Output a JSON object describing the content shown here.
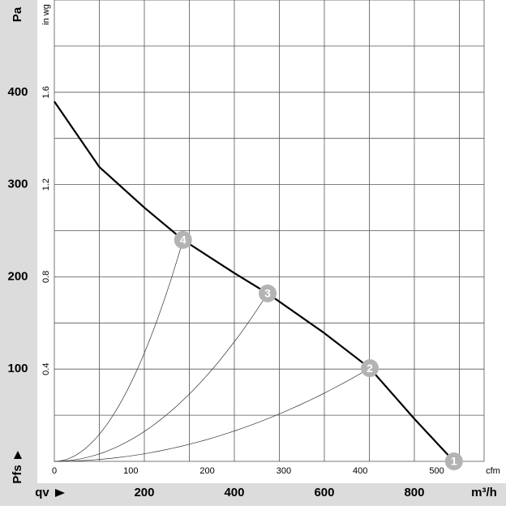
{
  "chart_data": {
    "type": "line",
    "y_unit": "Pa",
    "y2_unit": "in wg",
    "x_unit": "m³/h",
    "x2_unit": "cfm",
    "x_symbol": "qv",
    "y_symbol": "Pfs",
    "xlim": [
      0,
      955
    ],
    "xticks": [
      200,
      400,
      600,
      800
    ],
    "x2lim": [
      0,
      562
    ],
    "x2ticks": [
      0,
      100,
      200,
      300,
      400,
      500
    ],
    "ylim": [
      0,
      500
    ],
    "yticks": [
      100,
      200,
      300,
      400
    ],
    "y2lim": [
      0,
      2.0
    ],
    "y2ticks": [
      0.4,
      0.8,
      1.2,
      1.6
    ],
    "xgrid": [
      100,
      200,
      300,
      400,
      500,
      600,
      700,
      800,
      900
    ],
    "ygrid": [
      50,
      100,
      150,
      200,
      250,
      300,
      350,
      400,
      450
    ],
    "grid": true,
    "series": [
      {
        "color": "#000000",
        "x": [
          0,
          100,
          200,
          286,
          400,
          474,
          600,
          701,
          802,
          888
        ],
        "values": [
          390,
          319,
          275,
          240,
          204,
          182,
          139,
          101,
          45,
          0
        ]
      }
    ],
    "points": {
      "color": "#b3b3b3",
      "labels": [
        "1",
        "2",
        "3",
        "4"
      ],
      "x": [
        888,
        701,
        474,
        286
      ],
      "values": [
        0,
        101,
        182,
        240
      ]
    }
  }
}
